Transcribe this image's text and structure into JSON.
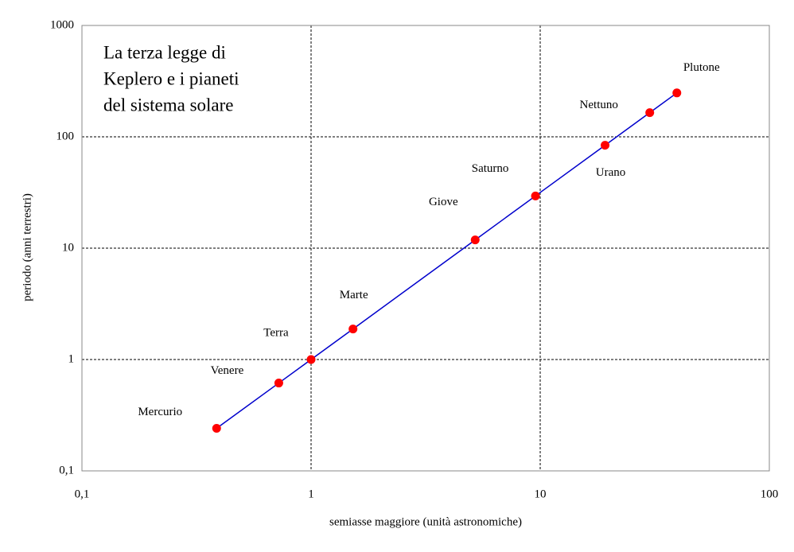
{
  "chart_data": {
    "type": "scatter",
    "title": [
      "La terza legge di",
      "Keplero e i pianeti",
      "del sistema solare"
    ],
    "x_label": "semiasse maggiore (unità astronomiche)",
    "y_label": "periodo (anni terrestri)",
    "x": [
      0.387,
      0.723,
      1,
      1.524,
      5.203,
      9.537,
      19.19,
      30.07,
      39.48
    ],
    "point_labels": [
      "Mercurio",
      "Venere",
      "Terra",
      "Marte",
      "Giove",
      "Saturno",
      "Urano",
      "Nettuno",
      "Plutone"
    ],
    "series": [
      {
        "values": [
          0.241,
          0.615,
          1,
          1.881,
          11.86,
          29.45,
          84.02,
          164.8,
          247.9
        ],
        "color": "#0000cc",
        "marker_color": "#ff0000"
      }
    ],
    "xlim": [
      0.1,
      100
    ],
    "ylim": [
      0.1,
      1000
    ],
    "xticks": [
      {
        "value": 0.1,
        "label": "0,1"
      },
      1,
      10,
      100
    ],
    "yticks": [
      {
        "value": 0.1,
        "label": "0,1"
      },
      1,
      10,
      100,
      1000
    ],
    "xlog": true,
    "ylog": true,
    "grid": true
  }
}
